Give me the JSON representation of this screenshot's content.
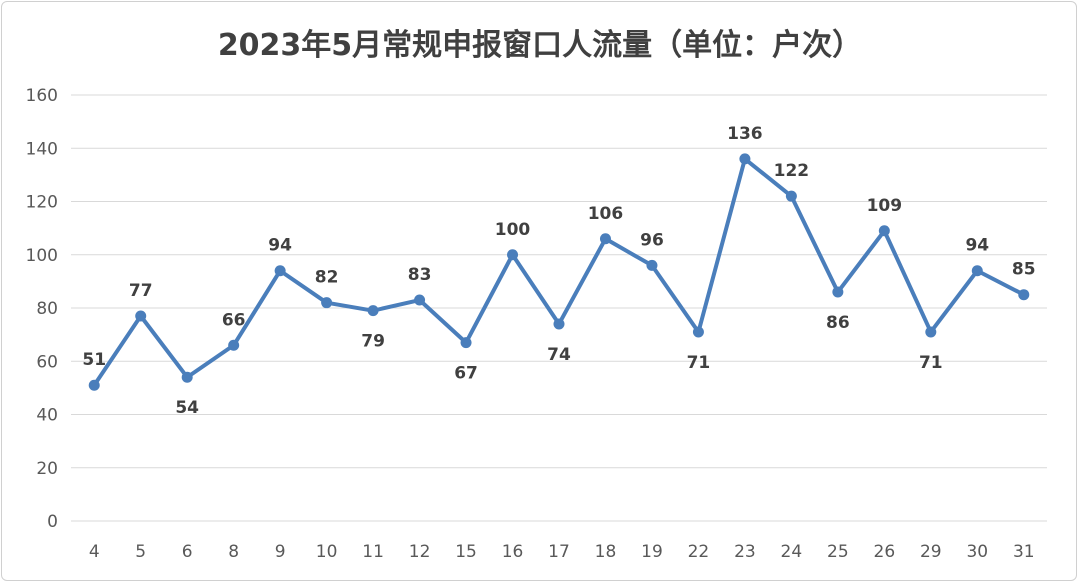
{
  "chart_data": {
    "type": "line",
    "title": "2023年5月常规申报窗口人流量（单位：户次）",
    "categories": [
      "4",
      "5",
      "6",
      "8",
      "9",
      "10",
      "11",
      "12",
      "15",
      "16",
      "17",
      "18",
      "19",
      "22",
      "23",
      "24",
      "25",
      "26",
      "29",
      "30",
      "31"
    ],
    "values": [
      51,
      77,
      54,
      66,
      94,
      82,
      79,
      83,
      67,
      100,
      74,
      106,
      96,
      71,
      136,
      122,
      86,
      109,
      71,
      94,
      85
    ],
    "ylim": [
      0,
      160
    ],
    "yticks": [
      0,
      20,
      40,
      60,
      80,
      100,
      120,
      140,
      160
    ],
    "grid": true,
    "legend": "none",
    "line_color": "#4a7ebb"
  }
}
